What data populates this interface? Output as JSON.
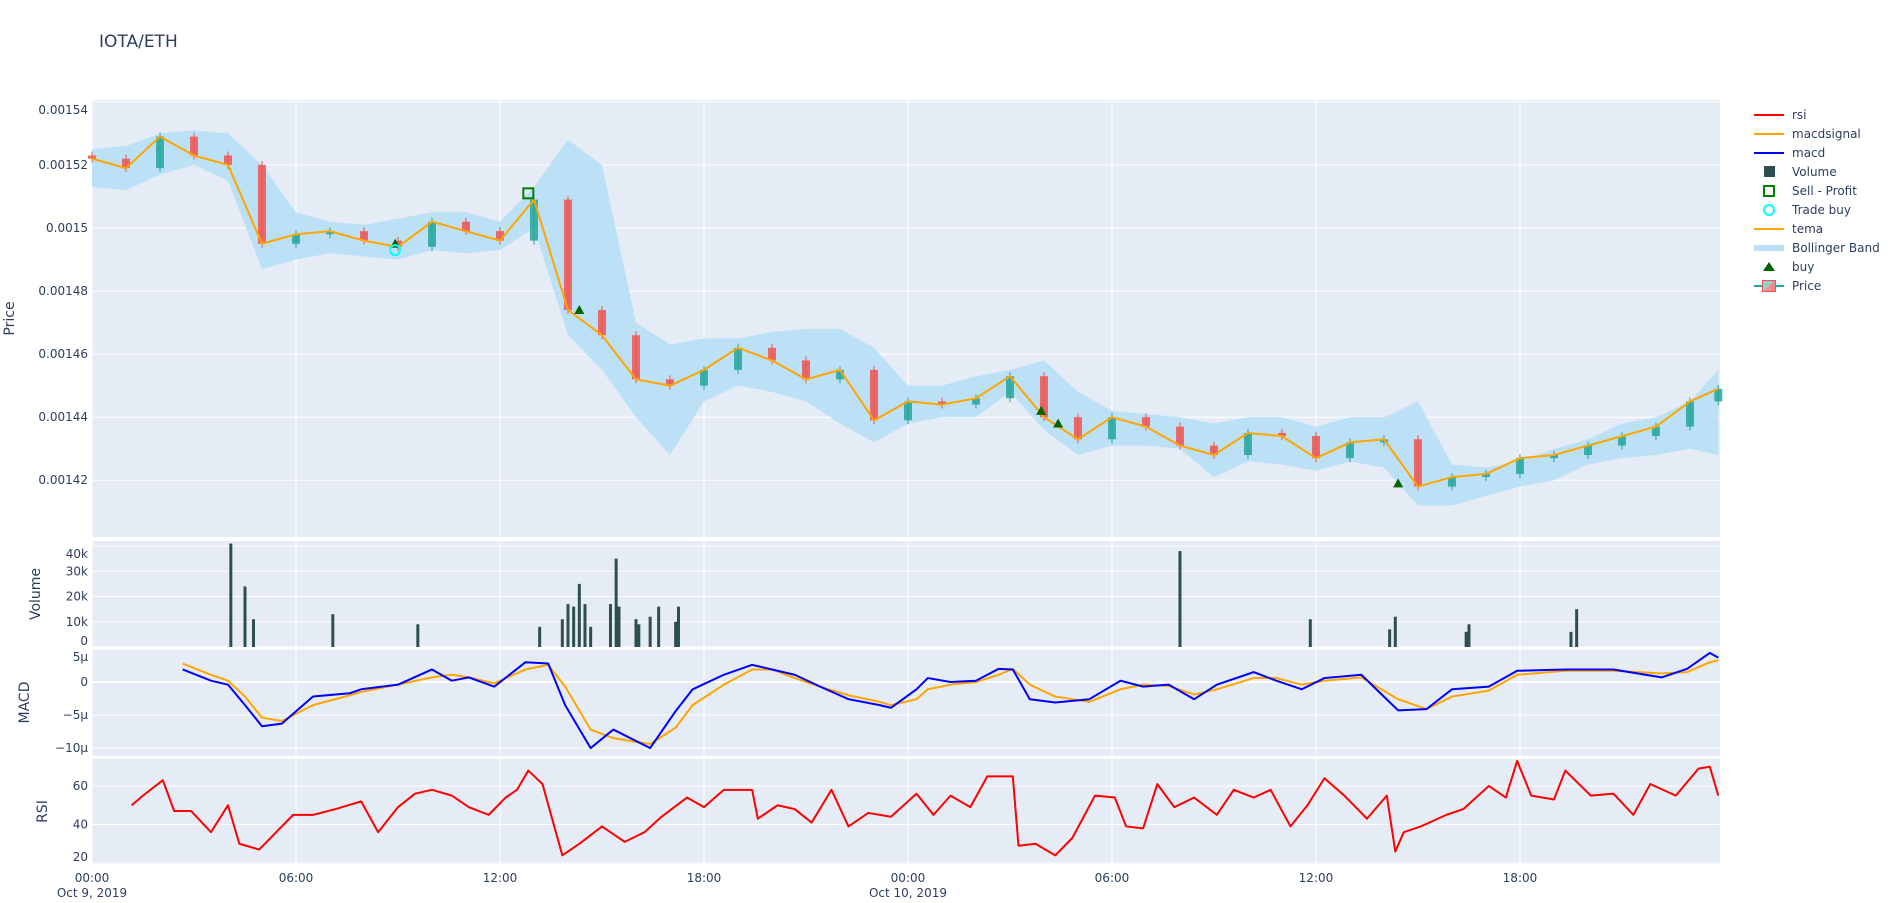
{
  "title": "IOTA/ETH",
  "legend": [
    {
      "label": "rsi",
      "color": "#ff0000",
      "kind": "line"
    },
    {
      "label": "macdsignal",
      "color": "#ffa500",
      "kind": "line"
    },
    {
      "label": "macd",
      "color": "#0000ff",
      "kind": "line"
    },
    {
      "label": "Volume",
      "color": "#2f4f4f",
      "kind": "square"
    },
    {
      "label": "Sell - Profit",
      "color": "#008000",
      "kind": "open-square"
    },
    {
      "label": "Trade buy",
      "color": "#00ffff",
      "kind": "open-circle"
    },
    {
      "label": "tema",
      "color": "#ffa500",
      "kind": "line"
    },
    {
      "label": "Bollinger Band",
      "color": "#b9e0f6",
      "kind": "band"
    },
    {
      "label": "buy",
      "color": "#006400",
      "kind": "triangle"
    },
    {
      "label": "Price",
      "color": "#26a69a",
      "kind": "candle"
    }
  ],
  "chart_data": {
    "type": "candlestick",
    "x_ticks": [
      {
        "time": "2019-10-09 00:00",
        "label": "00:00",
        "sub": "Oct 9, 2019"
      },
      {
        "time": "2019-10-09 06:00",
        "label": "06:00",
        "sub": ""
      },
      {
        "time": "2019-10-09 12:00",
        "label": "12:00",
        "sub": ""
      },
      {
        "time": "2019-10-09 18:00",
        "label": "18:00",
        "sub": ""
      },
      {
        "time": "2019-10-10 00:00",
        "label": "00:00",
        "sub": "Oct 10, 2019"
      },
      {
        "time": "2019-10-10 06:00",
        "label": "06:00",
        "sub": ""
      },
      {
        "time": "2019-10-10 12:00",
        "label": "12:00",
        "sub": ""
      },
      {
        "time": "2019-10-10 18:00",
        "label": "18:00",
        "sub": ""
      }
    ],
    "x_range": [
      "2019-10-09 00:00",
      "2019-10-10 23:53"
    ],
    "price": {
      "ylabel": "Price",
      "ylim": [
        0.001402,
        0.0015406
      ],
      "ticks": [
        {
          "v": 0.00142,
          "label": "0.00142"
        },
        {
          "v": 0.00144,
          "label": "0.00144"
        },
        {
          "v": 0.00146,
          "label": "0.00146"
        },
        {
          "v": 0.00148,
          "label": "0.00148"
        },
        {
          "v": 0.0015,
          "label": "0.0015"
        },
        {
          "v": 0.00152,
          "label": "0.00152"
        },
        {
          "v": 0.00154,
          "label": "0.00154"
        }
      ],
      "time": [
        "2019-10-09 00:00",
        "2019-10-09 01:00",
        "2019-10-09 02:00",
        "2019-10-09 03:00",
        "2019-10-09 04:00",
        "2019-10-09 05:00",
        "2019-10-09 06:00",
        "2019-10-09 07:00",
        "2019-10-09 08:00",
        "2019-10-09 09:00",
        "2019-10-09 10:00",
        "2019-10-09 11:00",
        "2019-10-09 12:00",
        "2019-10-09 13:00",
        "2019-10-09 14:00",
        "2019-10-09 15:00",
        "2019-10-09 16:00",
        "2019-10-09 17:00",
        "2019-10-09 18:00",
        "2019-10-09 19:00",
        "2019-10-09 20:00",
        "2019-10-09 21:00",
        "2019-10-09 22:00",
        "2019-10-09 23:00",
        "2019-10-10 00:00",
        "2019-10-10 01:00",
        "2019-10-10 02:00",
        "2019-10-10 03:00",
        "2019-10-10 04:00",
        "2019-10-10 05:00",
        "2019-10-10 06:00",
        "2019-10-10 07:00",
        "2019-10-10 08:00",
        "2019-10-10 09:00",
        "2019-10-10 10:00",
        "2019-10-10 11:00",
        "2019-10-10 12:00",
        "2019-10-10 13:00",
        "2019-10-10 14:00",
        "2019-10-10 15:00",
        "2019-10-10 16:00",
        "2019-10-10 17:00",
        "2019-10-10 18:00",
        "2019-10-10 19:00",
        "2019-10-10 20:00",
        "2019-10-10 21:00",
        "2019-10-10 22:00",
        "2019-10-10 23:00",
        "2019-10-10 23:50"
      ],
      "open": [
        0.001523,
        0.001522,
        0.001519,
        0.001529,
        0.001523,
        0.00152,
        0.001495,
        0.001498,
        0.001499,
        0.001496,
        0.001494,
        0.001502,
        0.001499,
        0.001496,
        0.001509,
        0.001474,
        0.001466,
        0.001452,
        0.00145,
        0.001455,
        0.001462,
        0.001458,
        0.001452,
        0.001455,
        0.001439,
        0.001445,
        0.001444,
        0.001446,
        0.001453,
        0.00144,
        0.001433,
        0.00144,
        0.001437,
        0.001431,
        0.001428,
        0.001435,
        0.001434,
        0.001427,
        0.001432,
        0.001433,
        0.001418,
        0.001421,
        0.001422,
        0.001427,
        0.001428,
        0.001431,
        0.001434,
        0.001437,
        0.001445
      ],
      "close": [
        0.001522,
        0.001519,
        0.001529,
        0.001523,
        0.00152,
        0.001495,
        0.001498,
        0.001499,
        0.001496,
        0.001494,
        0.001502,
        0.001499,
        0.001496,
        0.001509,
        0.001474,
        0.001466,
        0.001452,
        0.00145,
        0.001455,
        0.001462,
        0.001458,
        0.001452,
        0.001455,
        0.001439,
        0.001445,
        0.001444,
        0.001446,
        0.001453,
        0.00144,
        0.001433,
        0.00144,
        0.001437,
        0.001431,
        0.001428,
        0.001435,
        0.001434,
        0.001427,
        0.001432,
        0.001433,
        0.001418,
        0.001421,
        0.001422,
        0.001427,
        0.001428,
        0.001431,
        0.001434,
        0.001437,
        0.001445,
        0.001449
      ],
      "tema": [
        0.001522,
        0.001519,
        0.001529,
        0.001523,
        0.00152,
        0.001495,
        0.001498,
        0.001499,
        0.001496,
        0.001494,
        0.001502,
        0.001499,
        0.001496,
        0.001509,
        0.001474,
        0.001466,
        0.001452,
        0.00145,
        0.001455,
        0.001462,
        0.001458,
        0.001452,
        0.001455,
        0.001439,
        0.001445,
        0.001444,
        0.001446,
        0.001453,
        0.00144,
        0.001433,
        0.00144,
        0.001437,
        0.001431,
        0.001428,
        0.001435,
        0.001434,
        0.001427,
        0.001432,
        0.001433,
        0.001418,
        0.001421,
        0.001422,
        0.001427,
        0.001428,
        0.001431,
        0.001434,
        0.001437,
        0.001445,
        0.001449
      ],
      "bb_upper": [
        0.001525,
        0.001526,
        0.00153,
        0.001531,
        0.00153,
        0.00152,
        0.001505,
        0.001502,
        0.001501,
        0.001503,
        0.001505,
        0.001505,
        0.001502,
        0.001513,
        0.001528,
        0.00152,
        0.00147,
        0.001463,
        0.001465,
        0.001465,
        0.001467,
        0.001468,
        0.001468,
        0.001462,
        0.00145,
        0.00145,
        0.001453,
        0.001455,
        0.001458,
        0.001448,
        0.001442,
        0.001441,
        0.00144,
        0.001438,
        0.00144,
        0.00144,
        0.001437,
        0.00144,
        0.00144,
        0.001445,
        0.001425,
        0.001424,
        0.001426,
        0.00143,
        0.001433,
        0.001438,
        0.00144,
        0.001445,
        0.001455
      ],
      "bb_lower": [
        0.001513,
        0.001512,
        0.001517,
        0.00152,
        0.001515,
        0.001487,
        0.00149,
        0.001492,
        0.001491,
        0.00149,
        0.001493,
        0.001492,
        0.001493,
        0.0015,
        0.001466,
        0.001455,
        0.00144,
        0.001428,
        0.001445,
        0.00145,
        0.001448,
        0.001445,
        0.001438,
        0.001432,
        0.001438,
        0.00144,
        0.00144,
        0.001448,
        0.001436,
        0.001428,
        0.001431,
        0.001431,
        0.00143,
        0.001421,
        0.001426,
        0.001425,
        0.001423,
        0.001426,
        0.001424,
        0.001412,
        0.001412,
        0.001415,
        0.001418,
        0.00142,
        0.001425,
        0.001427,
        0.001428,
        0.00143,
        0.001428
      ],
      "buy": [
        {
          "time": "2019-10-09 08:55",
          "price": 0.001495
        },
        {
          "time": "2019-10-09 14:20",
          "price": 0.001474
        },
        {
          "time": "2019-10-10 03:55",
          "price": 0.001442
        },
        {
          "time": "2019-10-10 04:25",
          "price": 0.001438
        },
        {
          "time": "2019-10-10 14:25",
          "price": 0.001419
        }
      ],
      "trade_buy": [
        {
          "time": "2019-10-09 08:55",
          "price": 0.001493
        }
      ],
      "sell_profit": [
        {
          "time": "2019-10-09 12:50",
          "price": 0.001511
        }
      ]
    },
    "volume": {
      "ylabel": "Volume",
      "ylim": [
        0,
        42000
      ],
      "ticks": [
        {
          "v": 0,
          "label": "0"
        },
        {
          "v": 10000,
          "label": "10k"
        },
        {
          "v": 20000,
          "label": "20k"
        },
        {
          "v": 30000,
          "label": "30k"
        },
        {
          "v": 40000,
          "label": "40k"
        }
      ],
      "bars": [
        {
          "time": "2019-10-09 04:05",
          "v": 41000
        },
        {
          "time": "2019-10-09 04:30",
          "v": 24000
        },
        {
          "time": "2019-10-09 04:45",
          "v": 11000
        },
        {
          "time": "2019-10-09 07:05",
          "v": 13000
        },
        {
          "time": "2019-10-09 09:35",
          "v": 9000
        },
        {
          "time": "2019-10-09 13:10",
          "v": 8000
        },
        {
          "time": "2019-10-09 13:50",
          "v": 11000
        },
        {
          "time": "2019-10-09 14:00",
          "v": 17000
        },
        {
          "time": "2019-10-09 14:10",
          "v": 16000
        },
        {
          "time": "2019-10-09 14:20",
          "v": 25000
        },
        {
          "time": "2019-10-09 14:30",
          "v": 17000
        },
        {
          "time": "2019-10-09 14:40",
          "v": 8000
        },
        {
          "time": "2019-10-09 15:15",
          "v": 17000
        },
        {
          "time": "2019-10-09 15:25",
          "v": 35000
        },
        {
          "time": "2019-10-09 15:30",
          "v": 16000
        },
        {
          "time": "2019-10-09 16:00",
          "v": 11000
        },
        {
          "time": "2019-10-09 16:05",
          "v": 9000
        },
        {
          "time": "2019-10-09 16:25",
          "v": 12000
        },
        {
          "time": "2019-10-09 16:40",
          "v": 16000
        },
        {
          "time": "2019-10-09 17:10",
          "v": 10000
        },
        {
          "time": "2019-10-09 17:15",
          "v": 16000
        },
        {
          "time": "2019-10-10 08:00",
          "v": 38000
        },
        {
          "time": "2019-10-10 11:50",
          "v": 11000
        },
        {
          "time": "2019-10-10 14:10",
          "v": 7000
        },
        {
          "time": "2019-10-10 14:20",
          "v": 12000
        },
        {
          "time": "2019-10-10 16:25",
          "v": 6000
        },
        {
          "time": "2019-10-10 16:30",
          "v": 9000
        },
        {
          "time": "2019-10-10 19:30",
          "v": 6000
        },
        {
          "time": "2019-10-10 19:40",
          "v": 15000
        }
      ]
    },
    "macd": {
      "ylabel": "MACD",
      "ylim": [
        -11.2,
        5
      ],
      "unit": "µ",
      "ticks": [
        {
          "v": -10,
          "label": "−10µ"
        },
        {
          "v": -5,
          "label": "−5µ"
        },
        {
          "v": 0,
          "label": "0"
        },
        {
          "v": 5,
          "label": "5µ"
        }
      ],
      "time": [
        "2019-10-09 02:40",
        "2019-10-09 03:30",
        "2019-10-09 04:00",
        "2019-10-09 04:30",
        "2019-10-09 05:00",
        "2019-10-09 05:35",
        "2019-10-09 06:30",
        "2019-10-09 07:35",
        "2019-10-09 07:55",
        "2019-10-09 09:00",
        "2019-10-09 10:00",
        "2019-10-09 10:35",
        "2019-10-09 11:05",
        "2019-10-09 11:50",
        "2019-10-09 12:45",
        "2019-10-09 13:25",
        "2019-10-09 13:55",
        "2019-10-09 14:40",
        "2019-10-09 15:20",
        "2019-10-09 16:25",
        "2019-10-09 17:10",
        "2019-10-09 17:40",
        "2019-10-09 18:35",
        "2019-10-09 19:25",
        "2019-10-09 20:00",
        "2019-10-09 20:40",
        "2019-10-09 21:25",
        "2019-10-09 22:15",
        "2019-10-09 23:10",
        "2019-10-09 23:30",
        "2019-10-10 00:15",
        "2019-10-10 00:35",
        "2019-10-10 01:15",
        "2019-10-10 02:00",
        "2019-10-10 02:40",
        "2019-10-10 03:05",
        "2019-10-10 03:35",
        "2019-10-10 04:20",
        "2019-10-10 05:20",
        "2019-10-10 06:15",
        "2019-10-10 06:55",
        "2019-10-10 07:40",
        "2019-10-10 08:25",
        "2019-10-10 09:05",
        "2019-10-10 10:10",
        "2019-10-10 10:50",
        "2019-10-10 11:35",
        "2019-10-10 12:15",
        "2019-10-10 13:20",
        "2019-10-10 14:25",
        "2019-10-10 15:15",
        "2019-10-10 16:00",
        "2019-10-10 17:05",
        "2019-10-10 17:55",
        "2019-10-10 19:20",
        "2019-10-10 20:45",
        "2019-10-10 22:10",
        "2019-10-10 22:55",
        "2019-10-10 23:35",
        "2019-10-10 23:50"
      ],
      "macd": [
        1.9,
        0.2,
        -0.4,
        -3.5,
        -6.7,
        -6.3,
        -2.2,
        -1.7,
        -1.1,
        -0.4,
        1.9,
        0.2,
        0.7,
        -0.7,
        3.0,
        2.8,
        -3.5,
        -10.0,
        -7.2,
        -10.0,
        -4.4,
        -1.1,
        1.1,
        2.6,
        1.9,
        1.1,
        -0.7,
        -2.6,
        -3.5,
        -3.9,
        -1.1,
        0.6,
        0.0,
        0.2,
        2.0,
        1.9,
        -2.6,
        -3.1,
        -2.6,
        0.2,
        -0.7,
        -0.4,
        -2.6,
        -0.4,
        1.5,
        0.2,
        -1.1,
        0.6,
        1.1,
        -4.3,
        -4.1,
        -1.1,
        -0.7,
        1.7,
        1.9,
        1.9,
        0.7,
        2.0,
        4.4,
        3.7
      ],
      "macdsignal": [
        2.8,
        1.1,
        0.2,
        -2.2,
        -5.4,
        -5.9,
        -3.5,
        -2.0,
        -1.5,
        -0.4,
        0.7,
        1.1,
        0.7,
        -0.2,
        1.9,
        2.6,
        -0.7,
        -7.2,
        -8.5,
        -9.4,
        -6.9,
        -3.5,
        -0.4,
        1.9,
        1.9,
        0.6,
        -0.7,
        -2.0,
        -3.0,
        -3.5,
        -2.6,
        -1.1,
        -0.4,
        0.0,
        1.1,
        2.0,
        -0.4,
        -2.2,
        -3.0,
        -1.1,
        -0.4,
        -0.6,
        -1.9,
        -1.1,
        0.6,
        0.6,
        -0.4,
        0.2,
        0.7,
        -2.6,
        -4.1,
        -2.2,
        -1.3,
        1.1,
        1.7,
        1.7,
        1.3,
        1.5,
        3.0,
        3.3
      ]
    },
    "rsi": {
      "ylabel": "RSI",
      "ylim": [
        19.5,
        74
      ],
      "ticks": [
        {
          "v": 20,
          "label": "20"
        },
        {
          "v": 40,
          "label": "40"
        },
        {
          "v": 60,
          "label": "60"
        }
      ],
      "time": [
        "2019-10-09 01:10",
        "2019-10-09 01:30",
        "2019-10-09 02:05",
        "2019-10-09 02:25",
        "2019-10-09 02:55",
        "2019-10-09 03:30",
        "2019-10-09 04:00",
        "2019-10-09 04:20",
        "2019-10-09 04:55",
        "2019-10-09 05:25",
        "2019-10-09 05:55",
        "2019-10-09 06:30",
        "2019-10-09 07:10",
        "2019-10-09 07:55",
        "2019-10-09 08:25",
        "2019-10-09 09:00",
        "2019-10-09 09:30",
        "2019-10-09 10:00",
        "2019-10-09 10:35",
        "2019-10-09 11:05",
        "2019-10-09 11:40",
        "2019-10-09 12:10",
        "2019-10-09 12:30",
        "2019-10-09 12:50",
        "2019-10-09 13:15",
        "2019-10-09 13:50",
        "2019-10-09 14:20",
        "2019-10-09 15:00",
        "2019-10-09 15:40",
        "2019-10-09 16:15",
        "2019-10-09 16:45",
        "2019-10-09 17:30",
        "2019-10-09 18:00",
        "2019-10-09 18:35",
        "2019-10-09 19:25",
        "2019-10-09 19:35",
        "2019-10-09 20:10",
        "2019-10-09 20:40",
        "2019-10-09 21:10",
        "2019-10-09 21:45",
        "2019-10-09 22:15",
        "2019-10-09 22:50",
        "2019-10-09 23:30",
        "2019-10-10 00:15",
        "2019-10-10 00:45",
        "2019-10-10 01:15",
        "2019-10-10 01:50",
        "2019-10-10 02:20",
        "2019-10-10 03:05",
        "2019-10-10 03:15",
        "2019-10-10 03:45",
        "2019-10-10 04:20",
        "2019-10-10 04:50",
        "2019-10-10 05:30",
        "2019-10-10 06:05",
        "2019-10-10 06:25",
        "2019-10-10 06:55",
        "2019-10-10 07:20",
        "2019-10-10 07:50",
        "2019-10-10 08:25",
        "2019-10-10 09:05",
        "2019-10-10 09:35",
        "2019-10-10 10:10",
        "2019-10-10 10:40",
        "2019-10-10 11:15",
        "2019-10-10 11:45",
        "2019-10-10 12:15",
        "2019-10-10 12:50",
        "2019-10-10 13:30",
        "2019-10-10 14:05",
        "2019-10-10 14:20",
        "2019-10-10 14:35",
        "2019-10-10 15:05",
        "2019-10-10 15:50",
        "2019-10-10 16:20",
        "2019-10-10 17:05",
        "2019-10-10 17:35",
        "2019-10-10 17:55",
        "2019-10-10 18:20",
        "2019-10-10 19:00",
        "2019-10-10 19:20",
        "2019-10-10 20:05",
        "2019-10-10 20:45",
        "2019-10-10 21:20",
        "2019-10-10 21:50",
        "2019-10-10 22:35",
        "2019-10-10 23:15",
        "2019-10-10 23:35",
        "2019-10-10 23:50"
      ],
      "rsi": [
        50,
        55,
        63,
        47,
        47,
        36,
        50,
        30,
        27,
        36,
        45,
        45,
        48,
        52,
        36,
        49,
        56,
        58,
        55,
        49,
        45,
        54,
        58,
        68,
        61,
        24,
        30,
        39,
        31,
        36,
        44,
        54,
        49,
        58,
        58,
        43,
        50,
        48,
        41,
        58,
        39,
        46,
        44,
        56,
        45,
        55,
        49,
        65,
        65,
        29,
        30,
        24,
        33,
        55,
        54,
        39,
        38,
        61,
        49,
        54,
        45,
        58,
        54,
        58,
        39,
        50,
        64,
        55,
        43,
        55,
        26,
        36,
        39,
        45,
        48,
        60,
        54,
        73,
        55,
        53,
        68,
        55,
        56,
        45,
        61,
        55,
        69,
        70,
        55
      ]
    }
  }
}
